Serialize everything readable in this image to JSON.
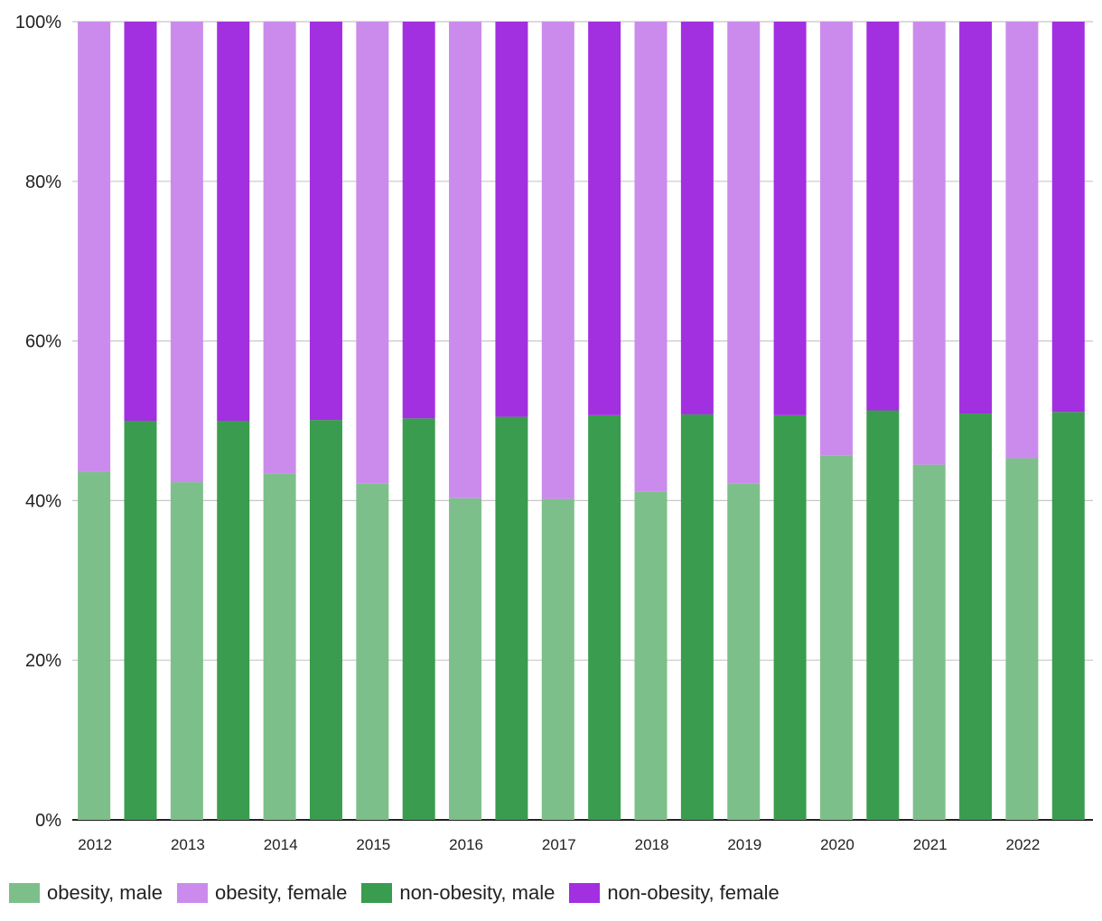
{
  "chart_data": {
    "type": "bar",
    "stacked": "percent",
    "categories": [
      "2012",
      "2013",
      "2014",
      "2015",
      "2016",
      "2017",
      "2018",
      "2019",
      "2020",
      "2021",
      "2022"
    ],
    "y_ticks": [
      "0%",
      "20%",
      "40%",
      "60%",
      "80%",
      "100%"
    ],
    "ylim": [
      0,
      100
    ],
    "grid": true,
    "legend_position": "bottom-left",
    "groups": [
      {
        "name": "obesity",
        "series": [
          {
            "name": "obesity, male",
            "color": "#7dbf8a",
            "values": [
              43.6,
              42.3,
              43.4,
              42.1,
              40.3,
              40.2,
              41.1,
              42.1,
              45.6,
              44.5,
              45.3
            ]
          },
          {
            "name": "obesity, female",
            "color": "#cb8bec",
            "values": [
              56.4,
              57.7,
              56.6,
              57.9,
              59.7,
              59.8,
              58.9,
              57.9,
              54.4,
              55.5,
              54.7
            ]
          }
        ]
      },
      {
        "name": "non-obesity",
        "series": [
          {
            "name": "non-obesity, male",
            "color": "#3a9c4e",
            "values": [
              50.0,
              50.0,
              50.1,
              50.3,
              50.5,
              50.7,
              50.8,
              50.7,
              51.3,
              50.9,
              51.1
            ]
          },
          {
            "name": "non-obesity, female",
            "color": "#a22fe0",
            "values": [
              50.0,
              50.0,
              49.9,
              49.7,
              49.5,
              49.3,
              49.2,
              49.3,
              48.7,
              49.1,
              48.9
            ]
          }
        ]
      }
    ]
  },
  "legend": [
    {
      "label": "obesity, male",
      "color": "#7dbf8a"
    },
    {
      "label": "obesity, female",
      "color": "#cb8bec"
    },
    {
      "label": "non-obesity, male",
      "color": "#3a9c4e"
    },
    {
      "label": "non-obesity, female",
      "color": "#a22fe0"
    }
  ]
}
